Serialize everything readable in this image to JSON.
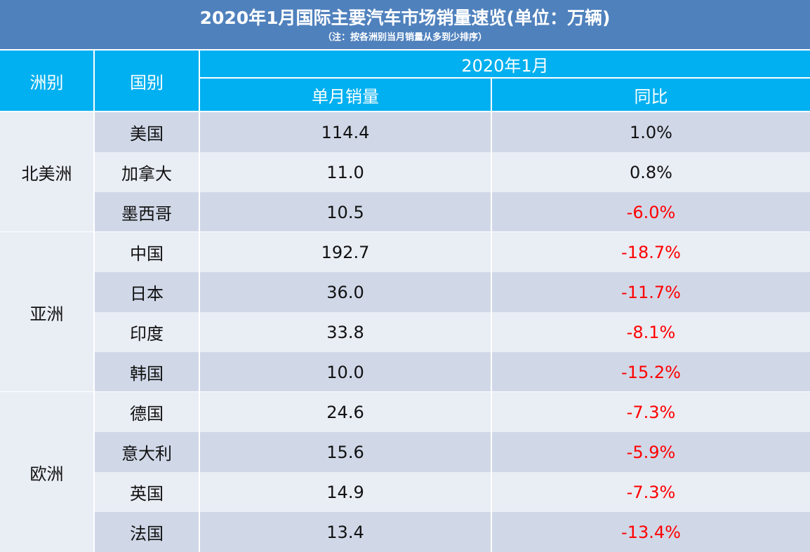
{
  "title": "2020年1月国际主要汽车市场销量速览(单位：万辆)",
  "subtitle": "（注：按各洲别当月销量从多到少排序）",
  "header": {
    "continent": "洲别",
    "country": "国别",
    "period": "2020年1月",
    "sales": "单月销量",
    "yoy": "同比"
  },
  "groups": [
    {
      "continent": "北美洲",
      "rows": [
        {
          "country": "美国",
          "sales": "114.4",
          "yoy": "1.0%"
        },
        {
          "country": "加拿大",
          "sales": "11.0",
          "yoy": "0.8%"
        },
        {
          "country": "墨西哥",
          "sales": "10.5",
          "yoy": "-6.0%"
        }
      ]
    },
    {
      "continent": "亚洲",
      "rows": [
        {
          "country": "中国",
          "sales": "192.7",
          "yoy": "-18.7%"
        },
        {
          "country": "日本",
          "sales": "36.0",
          "yoy": "-11.7%"
        },
        {
          "country": "印度",
          "sales": "33.8",
          "yoy": "-8.1%"
        },
        {
          "country": "韩国",
          "sales": "10.0",
          "yoy": "-15.2%"
        }
      ]
    },
    {
      "continent": "欧洲",
      "rows": [
        {
          "country": "德国",
          "sales": "24.6",
          "yoy": "-7.3%"
        },
        {
          "country": "意大利",
          "sales": "15.6",
          "yoy": "-5.9%"
        },
        {
          "country": "英国",
          "sales": "14.9",
          "yoy": "-7.3%"
        },
        {
          "country": "法国",
          "sales": "13.4",
          "yoy": "-13.4%"
        }
      ]
    }
  ],
  "colors": {
    "title_bg": "#4f81bd",
    "header_bg": "#00b0f0",
    "row_dark": "#d0d8e8",
    "row_light": "#e9edf4",
    "negative": "#ff0000"
  }
}
